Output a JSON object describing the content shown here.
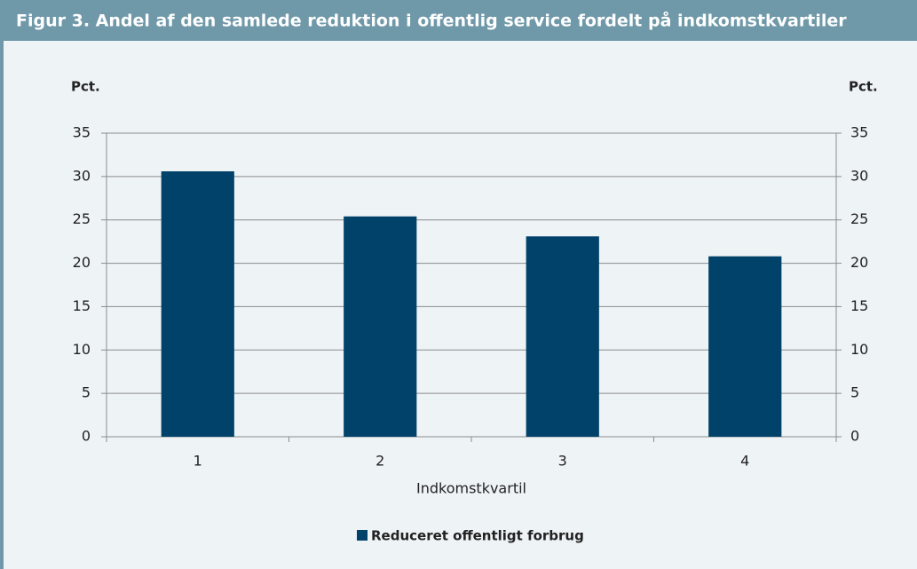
{
  "chart_data": {
    "type": "bar",
    "title": "Figur 3. Andel af den samlede reduktion i offentlig service fordelt på indkomstkvartiler",
    "ylabel": "Pct.",
    "y2label": "Pct.",
    "xlabel": "Indkomstkvartil",
    "categories": [
      "1",
      "2",
      "3",
      "4"
    ],
    "series": [
      {
        "name": "Reduceret offentligt forbrug",
        "color": "#004269",
        "values": [
          30.6,
          25.4,
          23.1,
          20.8
        ]
      }
    ],
    "ylim": [
      0,
      35
    ],
    "yticks": [
      0,
      5,
      10,
      15,
      20,
      25,
      30,
      35
    ],
    "y2lim": [
      0,
      35
    ],
    "y2ticks": [
      0,
      5,
      10,
      15,
      20,
      25,
      30,
      35
    ],
    "grid": true,
    "legend": "bottom"
  }
}
